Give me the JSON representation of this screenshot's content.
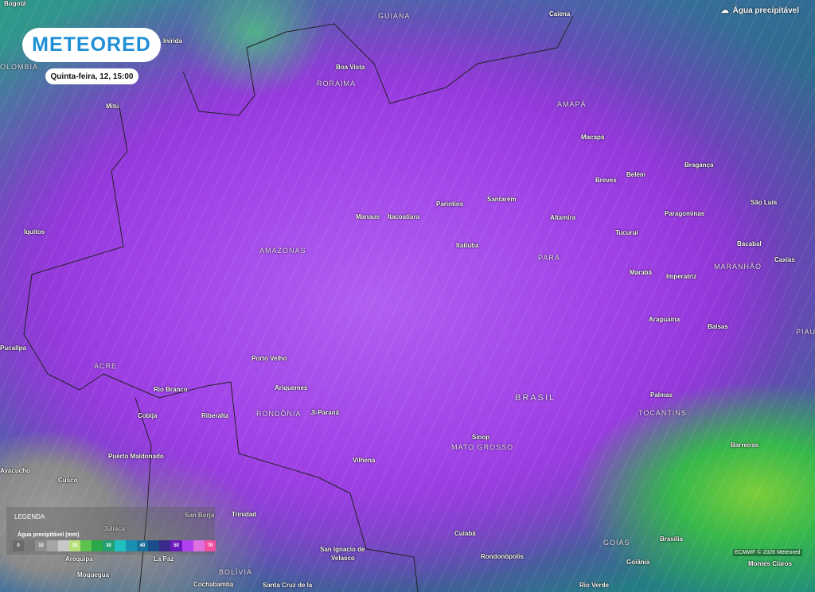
{
  "brand": {
    "logo": "METEORED",
    "datetime": "Quinta-feira, 12, 15:00"
  },
  "layer": {
    "icon": "cloud-upload-icon",
    "label": "Água precipitável"
  },
  "legend": {
    "title": "LEGENDA",
    "unit_label": "Água precipitável (mm)",
    "ticks": [
      "0",
      "10",
      "20",
      "30",
      "40",
      "50",
      "70"
    ],
    "colors": [
      "#6a6a6a",
      "#7a7a7a",
      "#8e8e8e",
      "#a6a6a6",
      "#c8c8c8",
      "#b8e07a",
      "#5cc24c",
      "#2aa84a",
      "#20a070",
      "#20c0c0",
      "#1a90b0",
      "#1a6e9a",
      "#1a4e88",
      "#3a2a8a",
      "#6a1ab8",
      "#b040f0",
      "#e070e0",
      "#f050a0"
    ]
  },
  "credit": "ECMWF © 2026 Meteored",
  "places": [
    "Bogotá",
    "Inírida",
    "OLOMBIA",
    "Mitú",
    "Iquitos",
    "Caiena",
    "GUIANA",
    "Boa Vista",
    "RORAIMA",
    "AMAPÁ",
    "Macapá",
    "Belém",
    "Bragança",
    "Breves",
    "São Luís",
    "Paragominas",
    "Parintins",
    "Santarém",
    "Manaus",
    "Itacoatiara",
    "Altamira",
    "Tucuruí",
    "Bacabal",
    "Caxias",
    "AMAZONAS",
    "Itaituba",
    "PARÁ",
    "Marabá",
    "Imperatriz",
    "MARANHÃO",
    "Araguaína",
    "Balsas",
    "PIAUÍ",
    "Pucallpa",
    "ACRE",
    "Porto Velho",
    "Rio Branco",
    "Ariquemes",
    "BRASIL",
    "Palmas",
    "TOCANTINS",
    "Cobija",
    "Riberalta",
    "RONDÔNIA",
    "Ji-Paraná",
    "Sinop",
    "MATO GROSSO",
    "Barreiras",
    "Puerto Maldonado",
    "Vilhena",
    "Cusco",
    "Ayacucho",
    "San Borja",
    "Trinidad",
    "Juliaca",
    "GOIÁS",
    "Cuiabá",
    "Brasília",
    "San Ignacio de",
    "Velasco",
    "Rondonópolis",
    "Arequipa",
    "La Paz",
    "Goiânia",
    "BOLÍVIA",
    "Moquegua",
    "Cochabamba",
    "Santa Cruz de la",
    "Montes Claros",
    "Rio Verde"
  ]
}
